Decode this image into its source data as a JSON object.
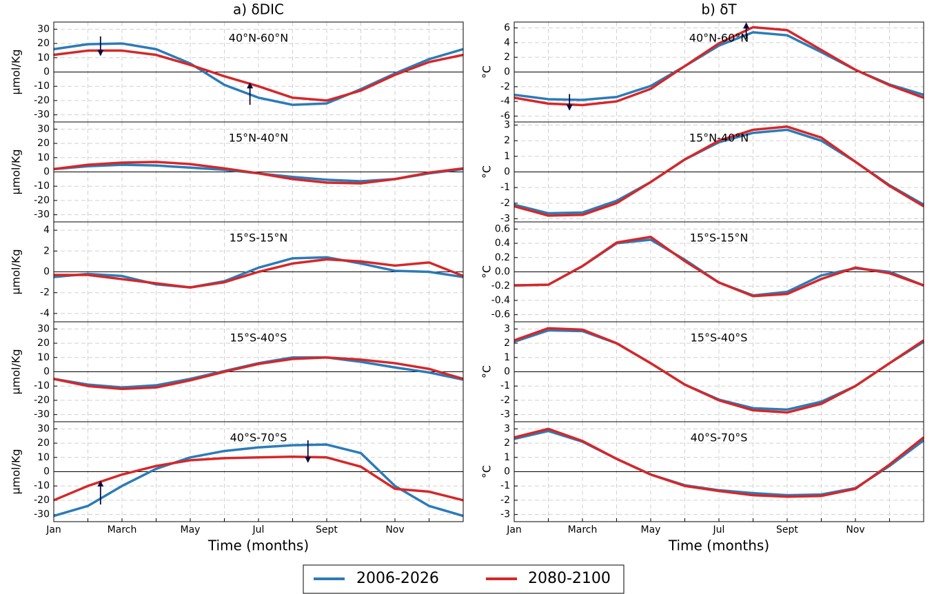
{
  "chart_data": [
    {
      "type": "line",
      "column_title": "a) δDIC",
      "title": "40°N-60°N",
      "ylabel": "μmol/Kg",
      "ylim": [
        -35,
        35
      ],
      "yticks": [
        -30,
        -20,
        -10,
        0,
        10,
        20,
        30
      ],
      "grid": true,
      "series": [
        {
          "name": "2006-2026",
          "color": "#2b7bba",
          "values": [
            16,
            19.5,
            20,
            16,
            6,
            -9,
            -18,
            -23,
            -22,
            -12,
            -1,
            9,
            16
          ]
        },
        {
          "name": "2080-2100",
          "color": "#d62728",
          "values": [
            12,
            15,
            15,
            12,
            5,
            -3,
            -10,
            -18,
            -20,
            -13,
            -2,
            7,
            12
          ]
        }
      ],
      "arrows": [
        {
          "x": 1.37,
          "from": 25,
          "to": 12
        },
        {
          "x": 5.75,
          "from": -23,
          "to": -8
        }
      ]
    },
    {
      "type": "line",
      "title": "15°N-40°N",
      "ylabel": "μmol/Kg",
      "ylim": [
        -35,
        35
      ],
      "yticks": [
        -30,
        -20,
        -10,
        0,
        10,
        20,
        30
      ],
      "grid": true,
      "series": [
        {
          "color": "#2b7bba",
          "values": [
            2,
            4,
            5,
            4.5,
            3,
            1.5,
            -1,
            -3.5,
            -5.5,
            -6.5,
            -5,
            -1,
            2
          ]
        },
        {
          "color": "#d62728",
          "values": [
            2,
            5,
            6.5,
            7,
            5.5,
            2.5,
            -1,
            -5,
            -7.5,
            -8,
            -5,
            -0.5,
            2.5
          ]
        }
      ]
    },
    {
      "type": "line",
      "title": "15°S-15°N",
      "ylabel": "μmol/Kg",
      "ylim": [
        -4.8,
        4.8
      ],
      "yticks": [
        -4,
        -2,
        0,
        2,
        4
      ],
      "grid": true,
      "series": [
        {
          "color": "#2b7bba",
          "values": [
            -0.5,
            -0.2,
            -0.4,
            -1.2,
            -1.5,
            -0.9,
            0.4,
            1.3,
            1.4,
            0.8,
            0.1,
            0,
            -0.5
          ]
        },
        {
          "color": "#d62728",
          "values": [
            -0.3,
            -0.3,
            -0.7,
            -1.1,
            -1.5,
            -1,
            0,
            0.8,
            1.2,
            1,
            0.6,
            0.9,
            -0.4
          ]
        }
      ]
    },
    {
      "type": "line",
      "title": "15°S-40°S",
      "ylabel": "μmol/Kg",
      "ylim": [
        -35,
        35
      ],
      "yticks": [
        -30,
        -20,
        -10,
        0,
        10,
        20,
        30
      ],
      "grid": true,
      "series": [
        {
          "color": "#2b7bba",
          "values": [
            -5,
            -9,
            -11,
            -9.5,
            -5,
            0.5,
            6,
            10,
            10,
            7,
            3,
            -0.5,
            -5.5
          ]
        },
        {
          "color": "#d62728",
          "values": [
            -5,
            -10,
            -12,
            -11,
            -6,
            0,
            5.5,
            9,
            10,
            8.5,
            6,
            2,
            -5
          ]
        }
      ]
    },
    {
      "type": "line",
      "title": "40°S-70°S",
      "ylabel": "μmol/Kg",
      "xlabel": "Time (months)",
      "ylim": [
        -35,
        35
      ],
      "yticks": [
        -30,
        -20,
        -10,
        0,
        10,
        20,
        30
      ],
      "grid": true,
      "categories": [
        "Jan",
        null,
        "March",
        null,
        "May",
        null,
        "Jul",
        null,
        "Sept",
        null,
        "Nov",
        null,
        null
      ],
      "series": [
        {
          "color": "#2b7bba",
          "values": [
            -31,
            -24,
            -10,
            2,
            10,
            14.5,
            17,
            18.5,
            19,
            13,
            -10,
            -24,
            -31
          ]
        },
        {
          "color": "#d62728",
          "values": [
            -20,
            -10,
            -2,
            4,
            8,
            9.5,
            10,
            10.5,
            10,
            3.5,
            -12,
            -14,
            -20
          ]
        }
      ],
      "arrows": [
        {
          "x": 1.37,
          "from": -23,
          "to": -7
        },
        {
          "x": 7.45,
          "from": 22,
          "to": 7
        }
      ]
    },
    {
      "type": "line",
      "column_title": "b) δT",
      "title": "40°N-60°N",
      "ylabel": "°C",
      "ylim": [
        -6.8,
        6.8
      ],
      "yticks": [
        -6,
        -4,
        -2,
        0,
        2,
        4,
        6
      ],
      "grid": true,
      "series": [
        {
          "color": "#2b7bba",
          "values": [
            -3.1,
            -3.7,
            -3.8,
            -3.4,
            -1.9,
            0.8,
            3.6,
            5.4,
            5,
            2.7,
            0.3,
            -1.7,
            -3.1
          ]
        },
        {
          "color": "#d62728",
          "values": [
            -3.5,
            -4.3,
            -4.5,
            -4,
            -2.3,
            0.8,
            3.9,
            6.1,
            5.7,
            3,
            0.3,
            -1.8,
            -3.5
          ]
        }
      ],
      "arrows": [
        {
          "x": 1.62,
          "from": -3,
          "to": -5.1
        },
        {
          "x": 6.8,
          "from": 4.5,
          "to": 6.6
        }
      ]
    },
    {
      "type": "line",
      "title": "15°N-40°N",
      "ylabel": "°C",
      "ylim": [
        -3.2,
        3.2
      ],
      "yticks": [
        -3,
        -2,
        -1,
        0,
        1,
        2,
        3
      ],
      "grid": true,
      "series": [
        {
          "color": "#2b7bba",
          "values": [
            -2.1,
            -2.65,
            -2.6,
            -1.85,
            -0.65,
            0.8,
            1.9,
            2.5,
            2.7,
            2,
            0.65,
            -0.85,
            -2.1
          ]
        },
        {
          "color": "#d62728",
          "values": [
            -2.2,
            -2.8,
            -2.75,
            -2,
            -0.65,
            0.8,
            2,
            2.7,
            2.9,
            2.2,
            0.65,
            -0.9,
            -2.2
          ]
        }
      ]
    },
    {
      "type": "line",
      "title": "15°S-15°N",
      "ylabel": "°C",
      "ylim": [
        -0.7,
        0.7
      ],
      "yticks": [
        -0.6,
        -0.4,
        -0.2,
        {
          "value": 0,
          "label": "0.0"
        },
        0.2,
        0.4,
        0.6
      ],
      "grid": true,
      "series": [
        {
          "color": "#2b7bba",
          "values": [
            -0.19,
            -0.18,
            0.08,
            0.4,
            0.45,
            0.17,
            -0.15,
            -0.33,
            -0.28,
            -0.05,
            0.05,
            0,
            -0.19
          ]
        },
        {
          "color": "#d62728",
          "values": [
            -0.19,
            -0.18,
            0.08,
            0.41,
            0.49,
            0.15,
            -0.15,
            -0.34,
            -0.31,
            -0.1,
            0.06,
            -0.02,
            -0.19
          ]
        }
      ]
    },
    {
      "type": "line",
      "title": "15°S-40°S",
      "ylabel": "°C",
      "ylim": [
        -3.5,
        3.5
      ],
      "yticks": [
        -3,
        -2,
        -1,
        0,
        1,
        2,
        3
      ],
      "grid": true,
      "series": [
        {
          "color": "#2b7bba",
          "values": [
            2.1,
            2.9,
            2.85,
            2,
            0.6,
            -0.9,
            -1.95,
            -2.55,
            -2.65,
            -2.1,
            -1,
            0.6,
            2.1
          ]
        },
        {
          "color": "#d62728",
          "values": [
            2.2,
            3.05,
            2.95,
            2,
            0.6,
            -0.9,
            -2,
            -2.7,
            -2.85,
            -2.25,
            -1,
            0.6,
            2.2
          ]
        }
      ]
    },
    {
      "type": "line",
      "title": "40°S-70°S",
      "ylabel": "°C",
      "xlabel": "Time (months)",
      "ylim": [
        -3.5,
        3.5
      ],
      "yticks": [
        -3,
        -2,
        -1,
        0,
        1,
        2,
        3
      ],
      "grid": true,
      "categories": [
        "Jan",
        null,
        "March",
        null,
        "May",
        null,
        "Jul",
        null,
        "Sept",
        null,
        "Nov",
        null,
        null
      ],
      "series": [
        {
          "color": "#2b7bba",
          "values": [
            2.3,
            2.85,
            2.1,
            0.9,
            -0.2,
            -0.95,
            -1.3,
            -1.5,
            -1.65,
            -1.6,
            -1.15,
            0.4,
            2.2
          ]
        },
        {
          "color": "#d62728",
          "values": [
            2.4,
            3,
            2.15,
            0.9,
            -0.2,
            -1,
            -1.35,
            -1.65,
            -1.75,
            -1.7,
            -1.2,
            0.5,
            2.4
          ]
        }
      ]
    }
  ]
}
